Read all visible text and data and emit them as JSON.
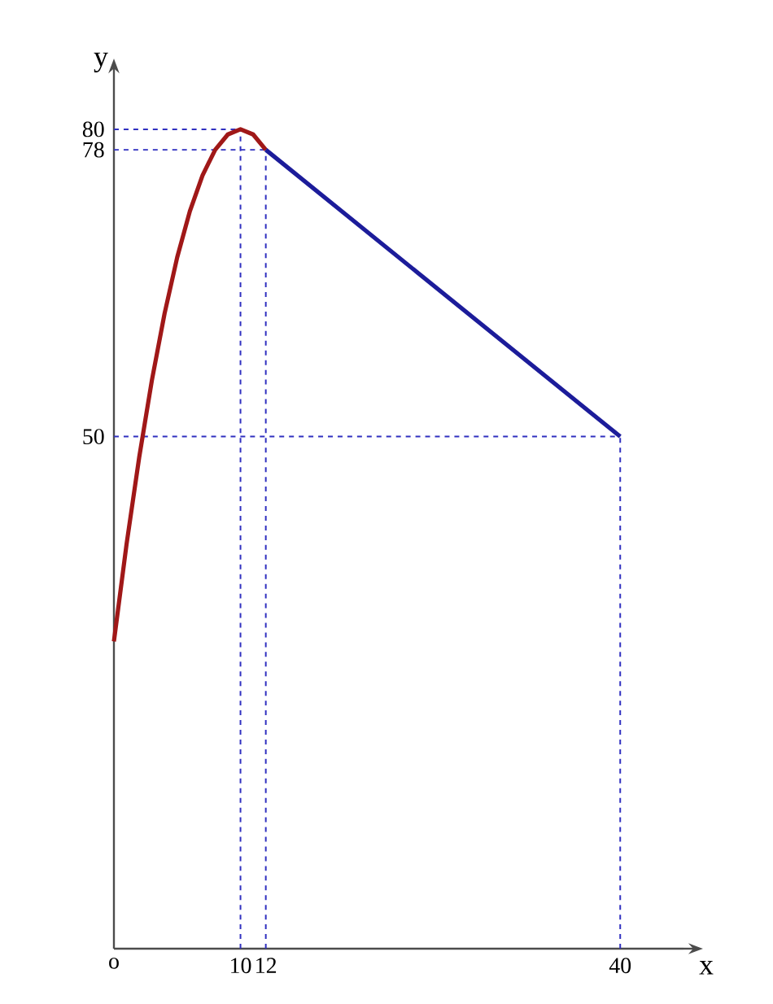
{
  "chart_data": {
    "type": "line",
    "xlabel": "x",
    "ylabel": "y",
    "xlim": [
      0,
      45
    ],
    "ylim": [
      0,
      85
    ],
    "xticks": [
      {
        "value": 0,
        "label": "o"
      },
      10,
      12,
      40
    ],
    "yticks": [
      50,
      78,
      80
    ],
    "series": [
      {
        "color": "#a01818",
        "x": [
          0,
          1,
          2,
          3,
          4,
          5,
          6,
          7,
          8,
          9,
          10,
          11,
          12
        ],
        "values": [
          30,
          39.5,
          48,
          55.5,
          62,
          67.5,
          72,
          75.5,
          78,
          79.5,
          80,
          79.5,
          78
        ]
      },
      {
        "color": "#1c1c9a",
        "x": [
          12,
          40
        ],
        "values": [
          78,
          50
        ]
      }
    ],
    "ref_lines": [
      {
        "axis": "x",
        "value": 10,
        "color": "#3030c0",
        "line_style": "dashed"
      },
      {
        "axis": "x",
        "value": 12,
        "color": "#3030c0",
        "line_style": "dashed"
      },
      {
        "axis": "x",
        "value": 40,
        "color": "#3030c0",
        "line_style": "dashed"
      },
      {
        "axis": "y",
        "value": 80,
        "color": "#3030c0",
        "line_style": "dashed"
      },
      {
        "axis": "y",
        "value": 78,
        "color": "#3030c0",
        "line_style": "dashed"
      },
      {
        "axis": "y",
        "value": 50,
        "color": "#3030c0",
        "line_style": "dashed"
      }
    ],
    "grid": false,
    "marker": "none",
    "line_style": "solid"
  }
}
